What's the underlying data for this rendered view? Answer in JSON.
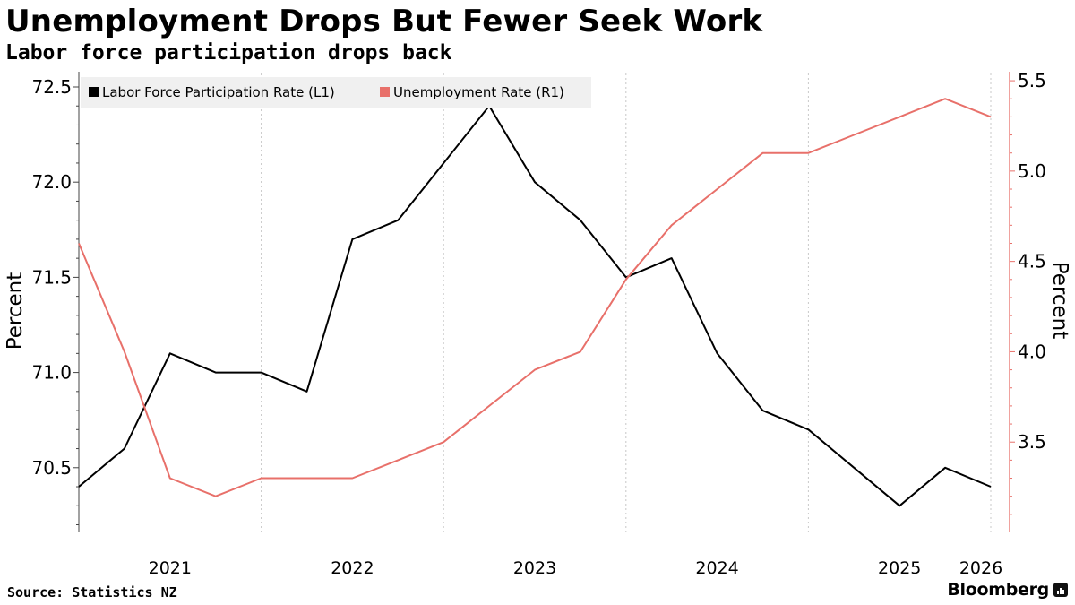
{
  "header": {
    "title": "Unemployment Drops But Fewer Seek Work",
    "subtitle": "Labor force participation drops back"
  },
  "footer": {
    "source": "Source: Statistics NZ",
    "brand": "Bloomberg"
  },
  "chart_data": {
    "type": "line",
    "x": [
      "2020-12",
      "2021-03",
      "2021-06",
      "2021-09",
      "2021-12",
      "2022-03",
      "2022-06",
      "2022-09",
      "2022-12",
      "2023-03",
      "2023-06",
      "2023-09",
      "2023-12",
      "2024-03",
      "2024-06",
      "2024-09",
      "2024-12",
      "2025-03",
      "2025-06",
      "2025-09",
      "2025-12"
    ],
    "x_tick_labels": [
      "2021",
      "2022",
      "2023",
      "2024",
      "2025",
      "2026"
    ],
    "series": [
      {
        "name": "Labor Force Participation Rate (L1)",
        "axis": "left",
        "color": "#000000",
        "values": [
          70.4,
          70.6,
          71.1,
          71.0,
          71.0,
          70.9,
          71.7,
          71.8,
          72.1,
          72.4,
          72.0,
          71.8,
          71.5,
          71.6,
          71.1,
          70.8,
          70.7,
          70.5,
          70.3,
          70.5,
          70.4
        ]
      },
      {
        "name": "Unemployment Rate (R1)",
        "axis": "right",
        "color": "#e8706a",
        "values": [
          4.6,
          4.0,
          3.3,
          3.2,
          3.3,
          3.3,
          3.3,
          3.4,
          3.5,
          3.7,
          3.9,
          4.0,
          4.4,
          4.7,
          4.9,
          5.1,
          5.1,
          5.2,
          5.3,
          5.4,
          5.3
        ]
      }
    ],
    "y_left": {
      "label": "Percent",
      "range": [
        70.16,
        72.58
      ],
      "ticks": [
        "70.5",
        "71.0",
        "71.5",
        "72.0",
        "72.5"
      ]
    },
    "y_right": {
      "label": "Percent",
      "range": [
        3.0,
        5.55
      ],
      "ticks": [
        "3.5",
        "4.0",
        "4.5",
        "5.0",
        "5.5"
      ]
    },
    "grid": "vertical-dotted",
    "legend_position": "top-left"
  }
}
